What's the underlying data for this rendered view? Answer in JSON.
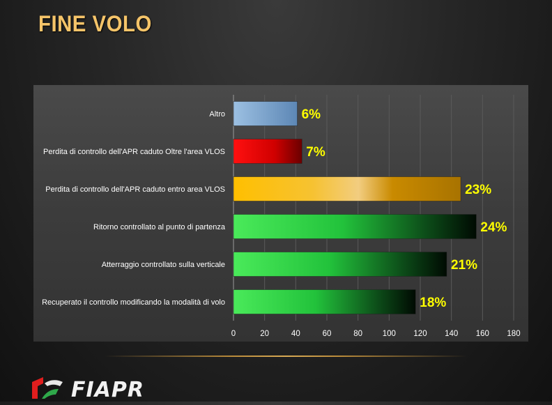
{
  "slide": {
    "title": "FINE VOLO"
  },
  "logo": {
    "text": "FIAPR"
  },
  "chart_data": {
    "type": "bar",
    "orientation": "horizontal",
    "categories": [
      "Altro",
      "Perdita di controllo dell'APR caduto Oltre l'area VLOS",
      "Perdita di controllo dell'APR caduto entro area VLOS",
      "Ritorno controllato al punto di partenza",
      "Atterraggio controllato sulla verticale",
      "Recuperato il controllo modificando la modalità di volo"
    ],
    "values": [
      41,
      44,
      146,
      156,
      137,
      117
    ],
    "data_labels": [
      "6%",
      "7%",
      "23%",
      "24%",
      "21%",
      "18%"
    ],
    "xlim": [
      0,
      180
    ],
    "xticks": [
      "0",
      "20",
      "40",
      "60",
      "80",
      "100",
      "120",
      "140",
      "160",
      "180"
    ],
    "grid": true,
    "legend": "none",
    "colors": {
      "Altro": "#7fa7cf",
      "Perdita di controllo dell'APR caduto Oltre l'area VLOS": "#d00000",
      "Perdita di controllo dell'APR caduto entro area VLOS": "#f2b400",
      "green_series": "#1fcf3a",
      "label": "#ffff00"
    }
  }
}
